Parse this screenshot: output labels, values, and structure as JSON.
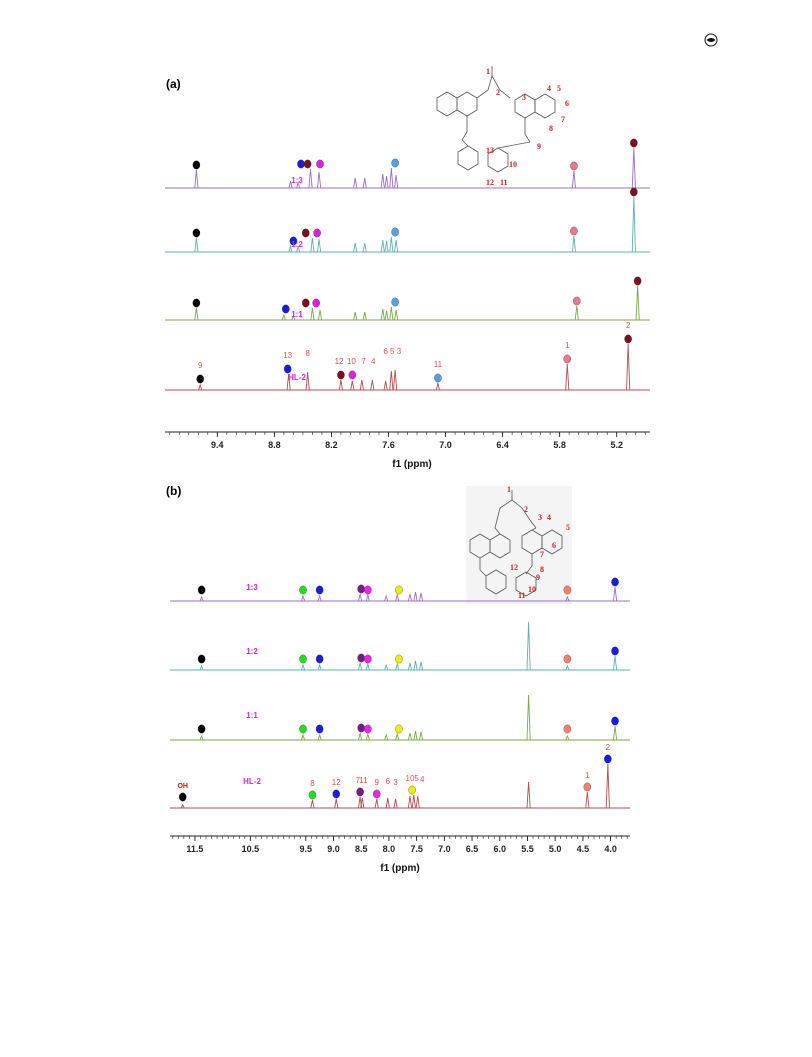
{
  "page_icon": "circle-logo-icon",
  "chart_data": [
    {
      "type": "line",
      "panel_label": "(a)",
      "xlabel": "f1 (ppm)",
      "xlim": [
        9.95,
        4.85
      ],
      "x_reversed": true,
      "tick_labels": [
        "9.4",
        "8.8",
        "8.2",
        "7.6",
        "7.0",
        "6.4",
        "5.8",
        "5.2"
      ],
      "series": [
        {
          "name": "1:3",
          "color": "#9c6fc7",
          "peaks": [
            {
              "x": 9.62,
              "h": 18
            },
            {
              "x": 8.63,
              "h": 7
            },
            {
              "x": 8.55,
              "h": 5
            },
            {
              "x": 8.42,
              "h": 19
            },
            {
              "x": 8.33,
              "h": 16
            },
            {
              "x": 7.95,
              "h": 10
            },
            {
              "x": 7.85,
              "h": 10
            },
            {
              "x": 7.66,
              "h": 14
            },
            {
              "x": 7.62,
              "h": 12
            },
            {
              "x": 7.57,
              "h": 20
            },
            {
              "x": 7.52,
              "h": 13
            },
            {
              "x": 5.65,
              "h": 17
            },
            {
              "x": 5.02,
              "h": 40
            }
          ],
          "markers": [
            {
              "x": 9.62,
              "color": "#000000"
            },
            {
              "x": 8.52,
              "color": "#1a1ae0"
            },
            {
              "x": 8.45,
              "color": "#7a1020"
            },
            {
              "x": 8.32,
              "color": "#e020e0"
            },
            {
              "x": 7.53,
              "color": "#5aa0e0"
            },
            {
              "x": 5.65,
              "color": "#e87890"
            },
            {
              "x": 5.02,
              "color": "#7a1020"
            }
          ]
        },
        {
          "name": "1:2",
          "color": "#5fb0b0",
          "peaks": [
            {
              "x": 9.62,
              "h": 14
            },
            {
              "x": 8.63,
              "h": 6
            },
            {
              "x": 8.55,
              "h": 5
            },
            {
              "x": 8.4,
              "h": 14
            },
            {
              "x": 8.33,
              "h": 13
            },
            {
              "x": 7.95,
              "h": 9
            },
            {
              "x": 7.85,
              "h": 9
            },
            {
              "x": 7.66,
              "h": 12
            },
            {
              "x": 7.62,
              "h": 11
            },
            {
              "x": 7.57,
              "h": 15
            },
            {
              "x": 7.52,
              "h": 12
            },
            {
              "x": 5.65,
              "h": 16
            },
            {
              "x": 5.02,
              "h": 55
            }
          ],
          "markers": [
            {
              "x": 9.62,
              "color": "#000000"
            },
            {
              "x": 8.6,
              "color": "#1a1ae0"
            },
            {
              "x": 8.47,
              "color": "#7a1020"
            },
            {
              "x": 8.35,
              "color": "#e020e0"
            },
            {
              "x": 7.53,
              "color": "#5aa0e0"
            },
            {
              "x": 5.65,
              "color": "#e87890"
            },
            {
              "x": 5.02,
              "color": "#7a1020"
            }
          ]
        },
        {
          "name": "1:1",
          "color": "#7aa84a",
          "peaks": [
            {
              "x": 9.62,
              "h": 12
            },
            {
              "x": 8.7,
              "h": 5
            },
            {
              "x": 8.6,
              "h": 4
            },
            {
              "x": 8.4,
              "h": 12
            },
            {
              "x": 8.32,
              "h": 10
            },
            {
              "x": 7.95,
              "h": 8
            },
            {
              "x": 7.85,
              "h": 8
            },
            {
              "x": 7.66,
              "h": 11
            },
            {
              "x": 7.62,
              "h": 9
            },
            {
              "x": 7.57,
              "h": 13
            },
            {
              "x": 7.52,
              "h": 10
            },
            {
              "x": 5.62,
              "h": 14
            },
            {
              "x": 4.98,
              "h": 34
            }
          ],
          "markers": [
            {
              "x": 9.62,
              "color": "#000000"
            },
            {
              "x": 8.68,
              "color": "#1a1ae0"
            },
            {
              "x": 8.47,
              "color": "#7a1020"
            },
            {
              "x": 8.36,
              "color": "#e020e0"
            },
            {
              "x": 7.53,
              "color": "#5aa0e0"
            },
            {
              "x": 5.62,
              "color": "#e87890"
            },
            {
              "x": 4.98,
              "color": "#7a1020"
            }
          ]
        },
        {
          "name": "HL-2",
          "color": "#b05050",
          "peaks": [
            {
              "x": 9.58,
              "h": 5
            },
            {
              "x": 8.65,
              "h": 16
            },
            {
              "x": 8.45,
              "h": 18
            },
            {
              "x": 8.1,
              "h": 10
            },
            {
              "x": 7.98,
              "h": 9
            },
            {
              "x": 7.88,
              "h": 10
            },
            {
              "x": 7.77,
              "h": 10
            },
            {
              "x": 7.63,
              "h": 9
            },
            {
              "x": 7.57,
              "h": 19
            },
            {
              "x": 7.53,
              "h": 20
            },
            {
              "x": 7.08,
              "h": 7
            },
            {
              "x": 5.72,
              "h": 26
            },
            {
              "x": 5.08,
              "h": 46
            }
          ],
          "markers": [
            {
              "x": 9.58,
              "color": "#000000"
            },
            {
              "x": 8.66,
              "color": "#1a1ae0"
            },
            {
              "x": 8.1,
              "color": "#7a1020"
            },
            {
              "x": 7.98,
              "color": "#e020e0"
            },
            {
              "x": 7.08,
              "color": "#5aa0e0"
            },
            {
              "x": 5.72,
              "color": "#e87890"
            },
            {
              "x": 5.08,
              "color": "#7a1020"
            }
          ],
          "peak_labels": [
            {
              "text": "9",
              "x": 9.58
            },
            {
              "text": "13",
              "x": 8.66
            },
            {
              "text": "8",
              "x": 8.45
            },
            {
              "text": "12",
              "x": 8.12
            },
            {
              "text": "10",
              "x": 7.99
            },
            {
              "text": "7",
              "x": 7.86
            },
            {
              "text": "4",
              "x": 7.76
            },
            {
              "text": "6",
              "x": 7.63
            },
            {
              "text": "5",
              "x": 7.56
            },
            {
              "text": "3",
              "x": 7.49
            },
            {
              "text": "11",
              "x": 7.08
            },
            {
              "text": "1",
              "x": 5.72
            },
            {
              "text": "2",
              "x": 5.08
            }
          ]
        }
      ],
      "structure_numbers": [
        "1",
        "2",
        "3",
        "4",
        "5",
        "6",
        "7",
        "8",
        "9",
        "10",
        "11",
        "12",
        "13"
      ]
    },
    {
      "type": "line",
      "panel_label": "(b)",
      "xlabel": "f1 (ppm)",
      "xlim": [
        11.95,
        3.65
      ],
      "x_reversed": true,
      "tick_labels": [
        "11.5",
        "10.5",
        "9.5",
        "9.0",
        "8.5",
        "8.0",
        "7.5",
        "7.0",
        "6.5",
        "6.0",
        "5.5",
        "5.0",
        "4.5",
        "4.0"
      ],
      "series": [
        {
          "name": "1:3",
          "color": "#9c6fc7",
          "peaks": [
            {
              "x": 11.38,
              "h": 4
            },
            {
              "x": 9.55,
              "h": 5
            },
            {
              "x": 9.25,
              "h": 5
            },
            {
              "x": 8.52,
              "h": 7
            },
            {
              "x": 8.38,
              "h": 6
            },
            {
              "x": 8.05,
              "h": 5
            },
            {
              "x": 7.85,
              "h": 6
            },
            {
              "x": 7.62,
              "h": 7
            },
            {
              "x": 7.52,
              "h": 9
            },
            {
              "x": 7.42,
              "h": 8
            },
            {
              "x": 4.78,
              "h": 4
            },
            {
              "x": 3.92,
              "h": 14
            }
          ],
          "markers": [
            {
              "x": 11.38,
              "color": "#000000"
            },
            {
              "x": 9.55,
              "color": "#22dd22"
            },
            {
              "x": 9.25,
              "color": "#1a1ae0"
            },
            {
              "x": 8.5,
              "color": "#7a1a8a"
            },
            {
              "x": 8.38,
              "color": "#ee22ee"
            },
            {
              "x": 7.82,
              "color": "#eeee00"
            },
            {
              "x": 4.78,
              "color": "#f08070"
            },
            {
              "x": 3.92,
              "color": "#1a1ae0"
            }
          ]
        },
        {
          "name": "1:2",
          "color": "#5fb0b0",
          "peaks": [
            {
              "x": 11.38,
              "h": 4
            },
            {
              "x": 9.55,
              "h": 5
            },
            {
              "x": 9.25,
              "h": 5
            },
            {
              "x": 8.52,
              "h": 7
            },
            {
              "x": 8.38,
              "h": 6
            },
            {
              "x": 8.05,
              "h": 5
            },
            {
              "x": 7.85,
              "h": 6
            },
            {
              "x": 7.62,
              "h": 7
            },
            {
              "x": 7.52,
              "h": 9
            },
            {
              "x": 7.42,
              "h": 8
            },
            {
              "x": 5.48,
              "h": 48
            },
            {
              "x": 4.78,
              "h": 4
            },
            {
              "x": 3.92,
              "h": 14
            }
          ],
          "markers": [
            {
              "x": 11.38,
              "color": "#000000"
            },
            {
              "x": 9.55,
              "color": "#22dd22"
            },
            {
              "x": 9.25,
              "color": "#1a1ae0"
            },
            {
              "x": 8.5,
              "color": "#7a1a8a"
            },
            {
              "x": 8.38,
              "color": "#ee22ee"
            },
            {
              "x": 7.82,
              "color": "#eeee00"
            },
            {
              "x": 4.78,
              "color": "#f08070"
            },
            {
              "x": 3.92,
              "color": "#1a1ae0"
            }
          ]
        },
        {
          "name": "1:1",
          "color": "#7aa84a",
          "peaks": [
            {
              "x": 11.38,
              "h": 4
            },
            {
              "x": 9.55,
              "h": 5
            },
            {
              "x": 9.25,
              "h": 5
            },
            {
              "x": 8.52,
              "h": 7
            },
            {
              "x": 8.38,
              "h": 6
            },
            {
              "x": 8.05,
              "h": 5
            },
            {
              "x": 7.85,
              "h": 6
            },
            {
              "x": 7.62,
              "h": 7
            },
            {
              "x": 7.52,
              "h": 9
            },
            {
              "x": 7.42,
              "h": 8
            },
            {
              "x": 5.48,
              "h": 45
            },
            {
              "x": 4.78,
              "h": 4
            },
            {
              "x": 3.92,
              "h": 14
            }
          ],
          "markers": [
            {
              "x": 11.38,
              "color": "#000000"
            },
            {
              "x": 9.55,
              "color": "#22dd22"
            },
            {
              "x": 9.25,
              "color": "#1a1ae0"
            },
            {
              "x": 8.5,
              "color": "#7a1a8a"
            },
            {
              "x": 8.38,
              "color": "#ee22ee"
            },
            {
              "x": 7.82,
              "color": "#eeee00"
            },
            {
              "x": 4.78,
              "color": "#f08070"
            },
            {
              "x": 3.92,
              "color": "#1a1ae0"
            }
          ]
        },
        {
          "name": "HL-2",
          "color": "#b05050",
          "peaks": [
            {
              "x": 11.72,
              "h": 3
            },
            {
              "x": 9.38,
              "h": 8
            },
            {
              "x": 8.95,
              "h": 9
            },
            {
              "x": 8.52,
              "h": 11
            },
            {
              "x": 8.48,
              "h": 10
            },
            {
              "x": 8.22,
              "h": 9
            },
            {
              "x": 8.02,
              "h": 10
            },
            {
              "x": 7.88,
              "h": 9
            },
            {
              "x": 7.62,
              "h": 12
            },
            {
              "x": 7.55,
              "h": 13
            },
            {
              "x": 7.48,
              "h": 12
            },
            {
              "x": 5.48,
              "h": 26
            },
            {
              "x": 4.42,
              "h": 16
            },
            {
              "x": 4.05,
              "h": 44
            }
          ],
          "markers": [
            {
              "x": 11.72,
              "color": "#000000"
            },
            {
              "x": 9.38,
              "color": "#22dd22"
            },
            {
              "x": 8.95,
              "color": "#1a1ae0"
            },
            {
              "x": 8.52,
              "color": "#7a1a8a"
            },
            {
              "x": 8.22,
              "color": "#ee22ee"
            },
            {
              "x": 7.58,
              "color": "#eeee00"
            },
            {
              "x": 4.42,
              "color": "#f08070"
            },
            {
              "x": 4.05,
              "color": "#1a1ae0"
            }
          ],
          "peak_labels": [
            {
              "text": "OH",
              "x": 11.72
            },
            {
              "text": "8",
              "x": 9.38
            },
            {
              "text": "12",
              "x": 8.95
            },
            {
              "text": "7",
              "x": 8.56
            },
            {
              "text": "11",
              "x": 8.46
            },
            {
              "text": "9",
              "x": 8.22
            },
            {
              "text": "6",
              "x": 8.02
            },
            {
              "text": "3",
              "x": 7.88
            },
            {
              "text": "10",
              "x": 7.62
            },
            {
              "text": "5",
              "x": 7.5
            },
            {
              "text": "4",
              "x": 7.4
            },
            {
              "text": "1",
              "x": 4.42
            },
            {
              "text": "2",
              "x": 4.05
            }
          ]
        }
      ],
      "structure_numbers": [
        "1",
        "2",
        "3",
        "4",
        "5",
        "6",
        "7",
        "8",
        "9",
        "10",
        "11",
        "12"
      ]
    }
  ]
}
